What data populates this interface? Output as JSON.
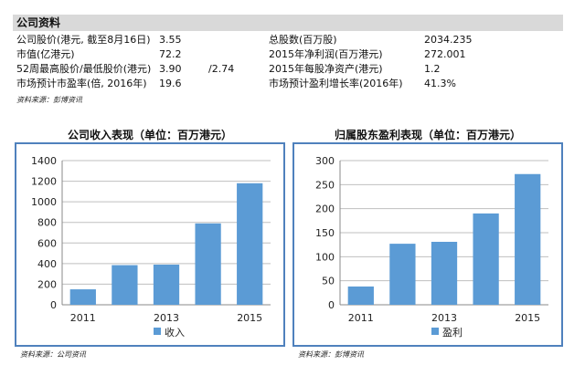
{
  "company_info": {
    "header": "公司资料",
    "rows": [
      {
        "label1": "公司股价(港元, 截至8月16日)",
        "value1": "3.55",
        "value1b": "",
        "label2": "总股数(百万股)",
        "value2": "2034.235"
      },
      {
        "label1": "市值(亿港元)",
        "value1": "72.2",
        "value1b": "",
        "label2": "2015年净利润(百万港元)",
        "value2": "272.001"
      },
      {
        "label1": "52周最高股价/最低股价(港元)",
        "value1": "3.90",
        "value1b": "/2.74",
        "label2": "2015年每股净资产(港元)",
        "value2": "1.2"
      },
      {
        "label1": "市场预计市盈率(倍, 2016年)",
        "value1": "19.6",
        "value1b": "",
        "label2": "市场预计盈利增长率(2016年)",
        "value2": "41.3%"
      }
    ],
    "source": "资料来源：彭博资讯"
  },
  "chart_data": [
    {
      "type": "bar",
      "title": "公司收入表现（单位：百万港元）",
      "categories": [
        "2011",
        "2012",
        "2013",
        "2014",
        "2015"
      ],
      "tick_labels": [
        "2011",
        "",
        "2013",
        "",
        "2015"
      ],
      "series": [
        {
          "name": "收入",
          "values": [
            150,
            385,
            390,
            790,
            1180
          ]
        }
      ],
      "ylim": [
        0,
        1400
      ],
      "yticks": [
        0,
        200,
        400,
        600,
        800,
        1000,
        1200,
        1400
      ],
      "grid": true,
      "legend": "bottom",
      "color": "#5b9bd5",
      "source": "资料来源：公司资讯"
    },
    {
      "type": "bar",
      "title": "归属股东盈利表现（单位：百万港元）",
      "categories": [
        "2011",
        "2012",
        "2013",
        "2014",
        "2015"
      ],
      "tick_labels": [
        "2011",
        "",
        "2013",
        "",
        "2015"
      ],
      "series": [
        {
          "name": "盈利",
          "values": [
            38,
            127,
            131,
            190,
            272
          ]
        }
      ],
      "ylim": [
        0,
        300
      ],
      "yticks": [
        0,
        50,
        100,
        150,
        200,
        250,
        300
      ],
      "grid": true,
      "legend": "bottom",
      "color": "#5b9bd5",
      "source": "资料来源：彭博资讯"
    }
  ]
}
